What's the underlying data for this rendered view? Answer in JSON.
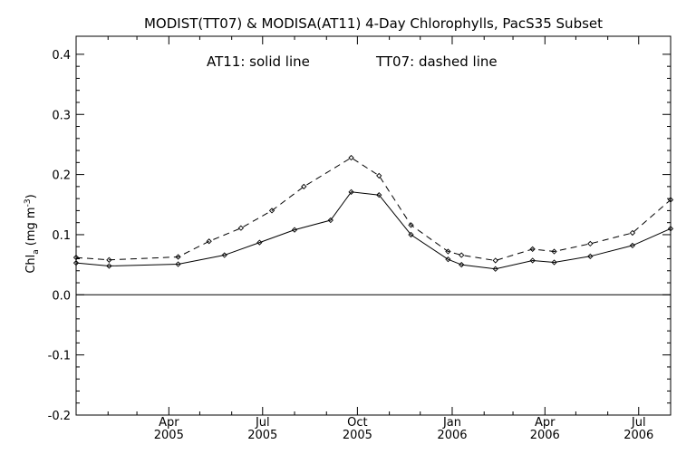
{
  "chart_data": {
    "type": "line",
    "title": "MODIST(TT07) & MODISA(AT11) 4-Day Chlorophylls, PacS35 Subset",
    "annotation_left": "AT11: solid line",
    "annotation_right": "TT07: dashed line",
    "ylabel_main": "Chl",
    "ylabel_sub": "a",
    "ylabel_units": "(mg m",
    "ylabel_units_sup": "-3",
    "ylabel_close": ")",
    "ylim": [
      -0.2,
      0.43
    ],
    "yticks": [
      {
        "value": -0.2,
        "label": "-0.2"
      },
      {
        "value": -0.1,
        "label": "-0.1"
      },
      {
        "value": 0.0,
        "label": "0.0"
      },
      {
        "value": 0.1,
        "label": "0.1"
      },
      {
        "value": 0.2,
        "label": "0.2"
      },
      {
        "value": 0.3,
        "label": "0.3"
      },
      {
        "value": 0.4,
        "label": "0.4"
      }
    ],
    "xlim": [
      "2005-01-01",
      "2006-08-01"
    ],
    "xticks": [
      {
        "date": "2005-04-01",
        "label1": "Apr",
        "label2": "2005"
      },
      {
        "date": "2005-07-01",
        "label1": "Jul",
        "label2": "2005"
      },
      {
        "date": "2005-10-01",
        "label1": "Oct",
        "label2": "2005"
      },
      {
        "date": "2006-01-01",
        "label1": "Jan",
        "label2": "2006"
      },
      {
        "date": "2006-04-01",
        "label1": "Apr",
        "label2": "2006"
      },
      {
        "date": "2006-07-01",
        "label1": "Jul",
        "label2": "2006"
      }
    ],
    "minor_ticks": [
      "2005-02-01",
      "2005-03-01",
      "2005-05-01",
      "2005-06-01",
      "2005-08-01",
      "2005-09-01",
      "2005-11-01",
      "2005-12-01",
      "2006-02-01",
      "2006-03-01",
      "2006-05-01",
      "2006-06-01"
    ],
    "zero_line": 0.0,
    "series": [
      {
        "style": "solid",
        "x": [
          "2005-01-01",
          "2005-02-02",
          "2005-04-10",
          "2005-05-25",
          "2005-06-28",
          "2005-08-01",
          "2005-09-05",
          "2005-09-25",
          "2005-10-22",
          "2005-11-22",
          "2005-12-28",
          "2006-01-10",
          "2006-02-12",
          "2006-03-20",
          "2006-04-10",
          "2006-05-15",
          "2006-06-25",
          "2006-08-01"
        ],
        "y": [
          0.053,
          0.048,
          0.051,
          0.066,
          0.087,
          0.108,
          0.124,
          0.171,
          0.166,
          0.1,
          0.059,
          0.05,
          0.043,
          0.057,
          0.054,
          0.064,
          0.082,
          0.11
        ]
      },
      {
        "style": "dashed",
        "x": [
          "2005-01-01",
          "2005-02-02",
          "2005-04-10",
          "2005-05-10",
          "2005-06-10",
          "2005-07-10",
          "2005-08-10",
          "2005-09-25",
          "2005-10-22",
          "2005-11-22",
          "2005-12-28",
          "2006-01-10",
          "2006-02-12",
          "2006-03-20",
          "2006-04-10",
          "2006-05-15",
          "2006-06-25",
          "2006-08-01"
        ],
        "y": [
          0.062,
          0.058,
          0.063,
          0.089,
          0.111,
          0.14,
          0.18,
          0.228,
          0.198,
          0.116,
          0.072,
          0.066,
          0.057,
          0.076,
          0.072,
          0.085,
          0.103,
          0.158
        ]
      }
    ]
  }
}
